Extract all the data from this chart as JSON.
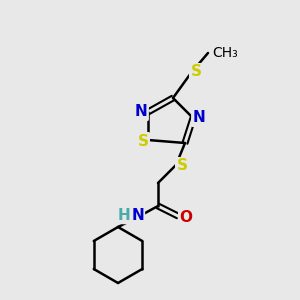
{
  "background_color": "#e8e8e8",
  "colors": {
    "S": "#cccc00",
    "N": "#0000cc",
    "O": "#cc0000",
    "C": "#000000",
    "H_teal": "#4aabab",
    "bond": "#000000",
    "background": "#e8e8e8"
  },
  "figsize": [
    3.0,
    3.0
  ],
  "dpi": 100
}
